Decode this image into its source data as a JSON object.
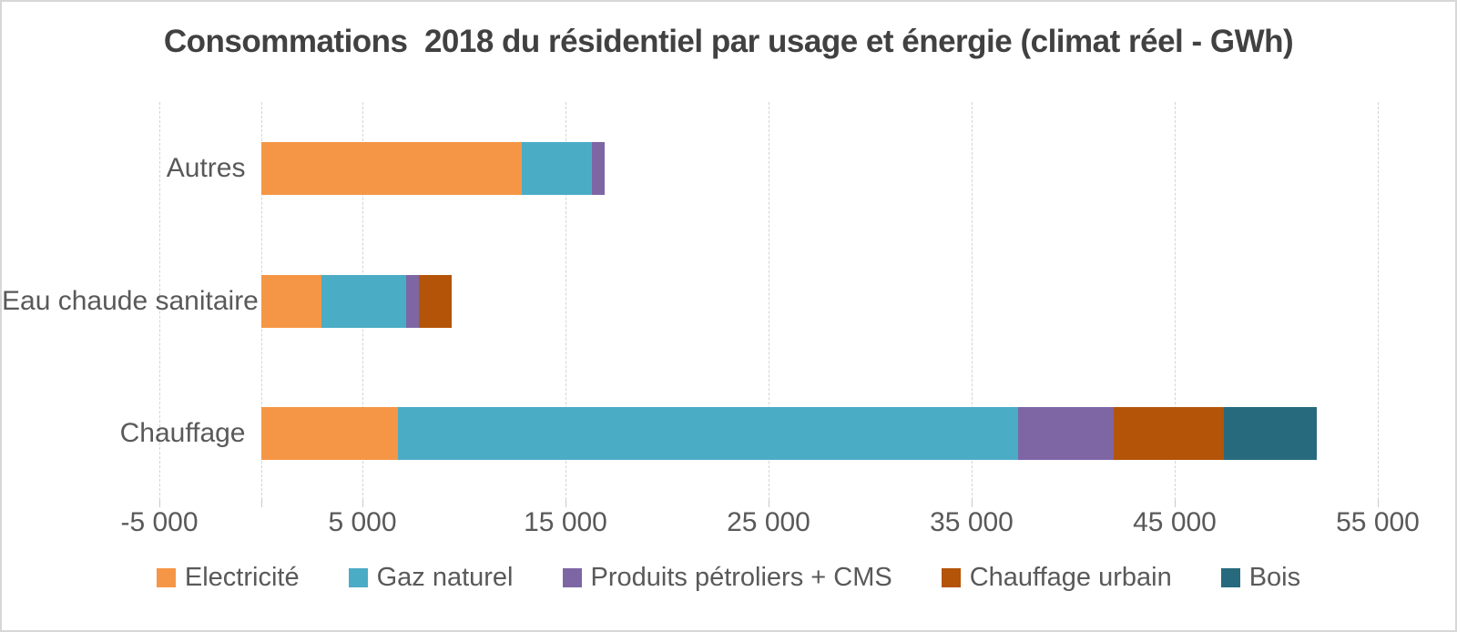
{
  "title": "Consommations  2018 du résidentiel par usage et énergie (climat réel - GWh)",
  "text_colors": {
    "title": "#414141",
    "labels": "#595959"
  },
  "chart_data": {
    "type": "bar",
    "orientation": "horizontal",
    "stacked": true,
    "title": "Consommations  2018 du résidentiel par usage et énergie (climat réel - GWh)",
    "unit": "GWh",
    "grid": true,
    "legend_position": "bottom",
    "categories": [
      "Autres",
      "Eau chaude sanitaire",
      "Chauffage"
    ],
    "series": [
      {
        "name": "Electricité",
        "color": "#F59646",
        "values": [
          12850,
          3000,
          6750
        ]
      },
      {
        "name": "Gaz naturel",
        "color": "#4BACC6",
        "values": [
          3450,
          4150,
          30550
        ]
      },
      {
        "name": "Produits pétroliers + CMS",
        "color": "#7E66A5",
        "values": [
          650,
          650,
          4700
        ]
      },
      {
        "name": "Chauffage urbain",
        "color": "#B45408",
        "values": [
          0,
          1600,
          5400
        ]
      },
      {
        "name": "Bois",
        "color": "#276A7D",
        "values": [
          0,
          0,
          4600
        ]
      }
    ],
    "category_totals": [
      16950,
      9400,
      52000
    ],
    "xlim": [
      -5000,
      55000
    ],
    "x_ticks": [
      {
        "value": -5000,
        "label": "-5 000"
      },
      {
        "value": 5000,
        "label": "5 000"
      },
      {
        "value": 15000,
        "label": "15 000"
      },
      {
        "value": 25000,
        "label": "25 000"
      },
      {
        "value": 35000,
        "label": "35 000"
      },
      {
        "value": 45000,
        "label": "45 000"
      },
      {
        "value": 55000,
        "label": "55 000"
      }
    ],
    "gridline_values": [
      -5000,
      0,
      5000,
      15000,
      25000,
      35000,
      45000,
      55000
    ]
  }
}
